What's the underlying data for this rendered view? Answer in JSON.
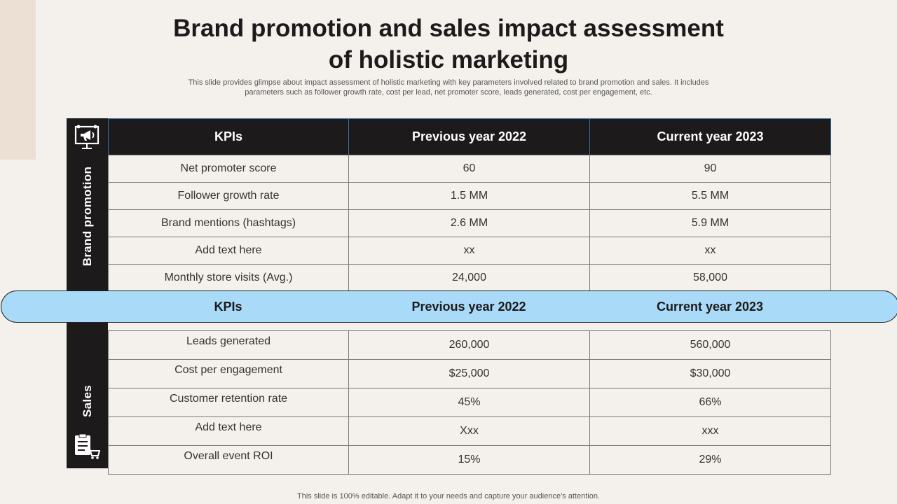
{
  "title": {
    "line1": "Brand promotion and sales impact assessment",
    "line2": "of holistic marketing"
  },
  "subtitle": "This slide provides glimpse about impact assessment of holistic marketing with key parameters involved related to brand promotion and sales. It includes parameters such as follower growth rate, cost per lead, net promoter score, leads generated, cost per engagement, etc.",
  "brand_section": {
    "label": "Brand promotion",
    "icon": "presentation-megaphone-icon",
    "headers": [
      "KPIs",
      "Previous year 2022",
      "Current year 2023"
    ],
    "rows": [
      [
        "Net promoter score",
        "60",
        "90"
      ],
      [
        "Follower growth rate",
        "1.5 MM",
        "5.5 MM"
      ],
      [
        "Brand mentions (hashtags)",
        "2.6 MM",
        "5.9 MM"
      ],
      [
        "Add text here",
        "xx",
        "xx"
      ],
      [
        "Monthly  store visits (Avg.)",
        "24,000",
        "58,000"
      ]
    ]
  },
  "sales_section": {
    "label": "Sales",
    "icon": "checklist-cart-icon",
    "headers": [
      "KPIs",
      "Previous year 2022",
      "Current year 2023"
    ],
    "rows": [
      [
        "Leads generated",
        "260,000",
        "560,000"
      ],
      [
        "Cost per engagement",
        "$25,000",
        "$30,000"
      ],
      [
        "Customer retention rate",
        "45%",
        "66%"
      ],
      [
        "Add text here",
        "Xxx",
        "xxx"
      ],
      [
        "Overall event ROI",
        "15%",
        "29%"
      ]
    ]
  },
  "footer": "This slide is 100% editable. Adapt it to your needs and capture your audience's attention.",
  "colors": {
    "background": "#f4f1ec",
    "dark": "#1c1a1a",
    "pill": "#a9daf7",
    "accent": "#ecdfd4"
  }
}
